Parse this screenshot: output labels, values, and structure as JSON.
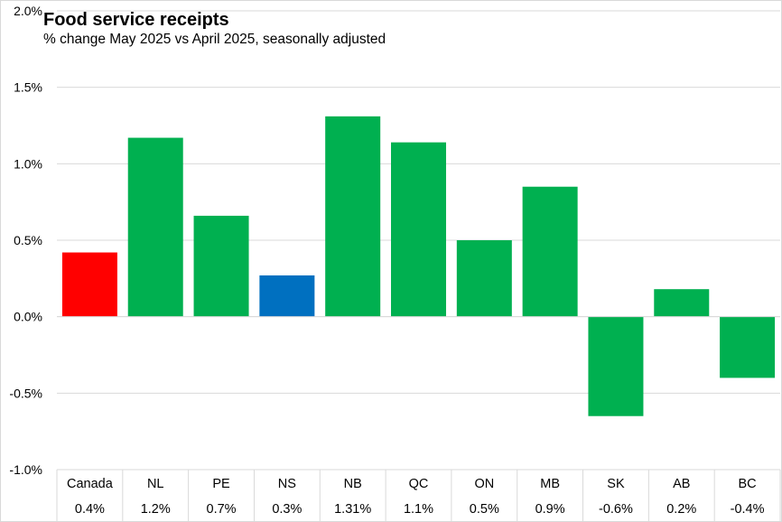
{
  "chart_data": {
    "type": "bar",
    "title": "Food service receipts",
    "subtitle": "% change May 2025 vs April 2025,  seasonally adjusted",
    "categories": [
      "Canada",
      "NL",
      "PE",
      "NS",
      "NB",
      "QC",
      "ON",
      "MB",
      "SK",
      "AB",
      "BC"
    ],
    "values": [
      0.42,
      1.17,
      0.66,
      0.27,
      1.31,
      1.14,
      0.5,
      0.85,
      -0.65,
      0.18,
      -0.4
    ],
    "data_labels": [
      "0.4%",
      "1.2%",
      "0.7%",
      "0.3%",
      "1.31%",
      "1.1%",
      "0.5%",
      "0.9%",
      "-0.6%",
      "0.2%",
      "-0.4%"
    ],
    "colors": [
      "#ff0000",
      "#00b050",
      "#00b050",
      "#0070c0",
      "#00b050",
      "#00b050",
      "#00b050",
      "#00b050",
      "#00b050",
      "#00b050",
      "#00b050"
    ],
    "ylim": [
      -1.0,
      2.0
    ],
    "yticks": [
      -1.0,
      -0.5,
      0.0,
      0.5,
      1.0,
      1.5,
      2.0
    ],
    "ytick_labels": [
      "-1.0%",
      "-0.5%",
      "0.0%",
      "0.5%",
      "1.0%",
      "1.5%",
      "2.0%"
    ],
    "xlabel": "",
    "ylabel": "",
    "grid": true,
    "legend": "none",
    "data_table": true
  }
}
